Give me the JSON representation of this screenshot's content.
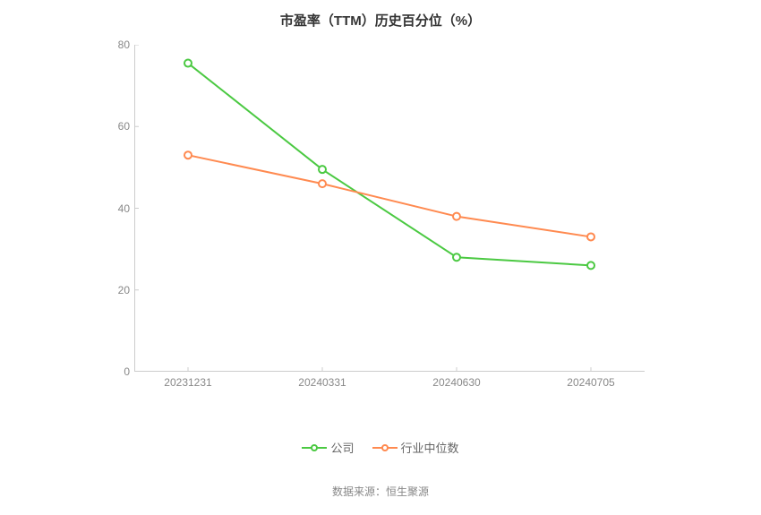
{
  "chart": {
    "type": "line",
    "title": "市盈率（TTM）历史百分位（%）",
    "title_fontsize": 15,
    "title_color": "#333333",
    "background_color": "#ffffff",
    "axis_line_color": "#cccccc",
    "tick_label_color": "#888888",
    "tick_fontsize": 12,
    "y": {
      "min": 0,
      "max": 80,
      "step": 20,
      "ticks": [
        0,
        20,
        40,
        60,
        80
      ]
    },
    "x": {
      "categories": [
        "20231231",
        "20240331",
        "20240630",
        "20240705"
      ]
    },
    "series": [
      {
        "name": "公司",
        "color": "#4bc942",
        "line_width": 2,
        "marker": "circle-open",
        "marker_size": 8,
        "marker_fill": "#ffffff",
        "values": [
          75.5,
          49.5,
          28,
          26
        ]
      },
      {
        "name": "行业中位数",
        "color": "#ff8a50",
        "line_width": 2,
        "marker": "circle-open",
        "marker_size": 8,
        "marker_fill": "#ffffff",
        "values": [
          53,
          46,
          38,
          33
        ]
      }
    ],
    "legend": {
      "items": [
        {
          "label": "公司",
          "color": "#4bc942"
        },
        {
          "label": "行业中位数",
          "color": "#ff8a50"
        }
      ],
      "fontsize": 13,
      "text_color": "#666666"
    },
    "source_label": "数据来源：恒生聚源",
    "source_color": "#888888",
    "source_fontsize": 12
  }
}
